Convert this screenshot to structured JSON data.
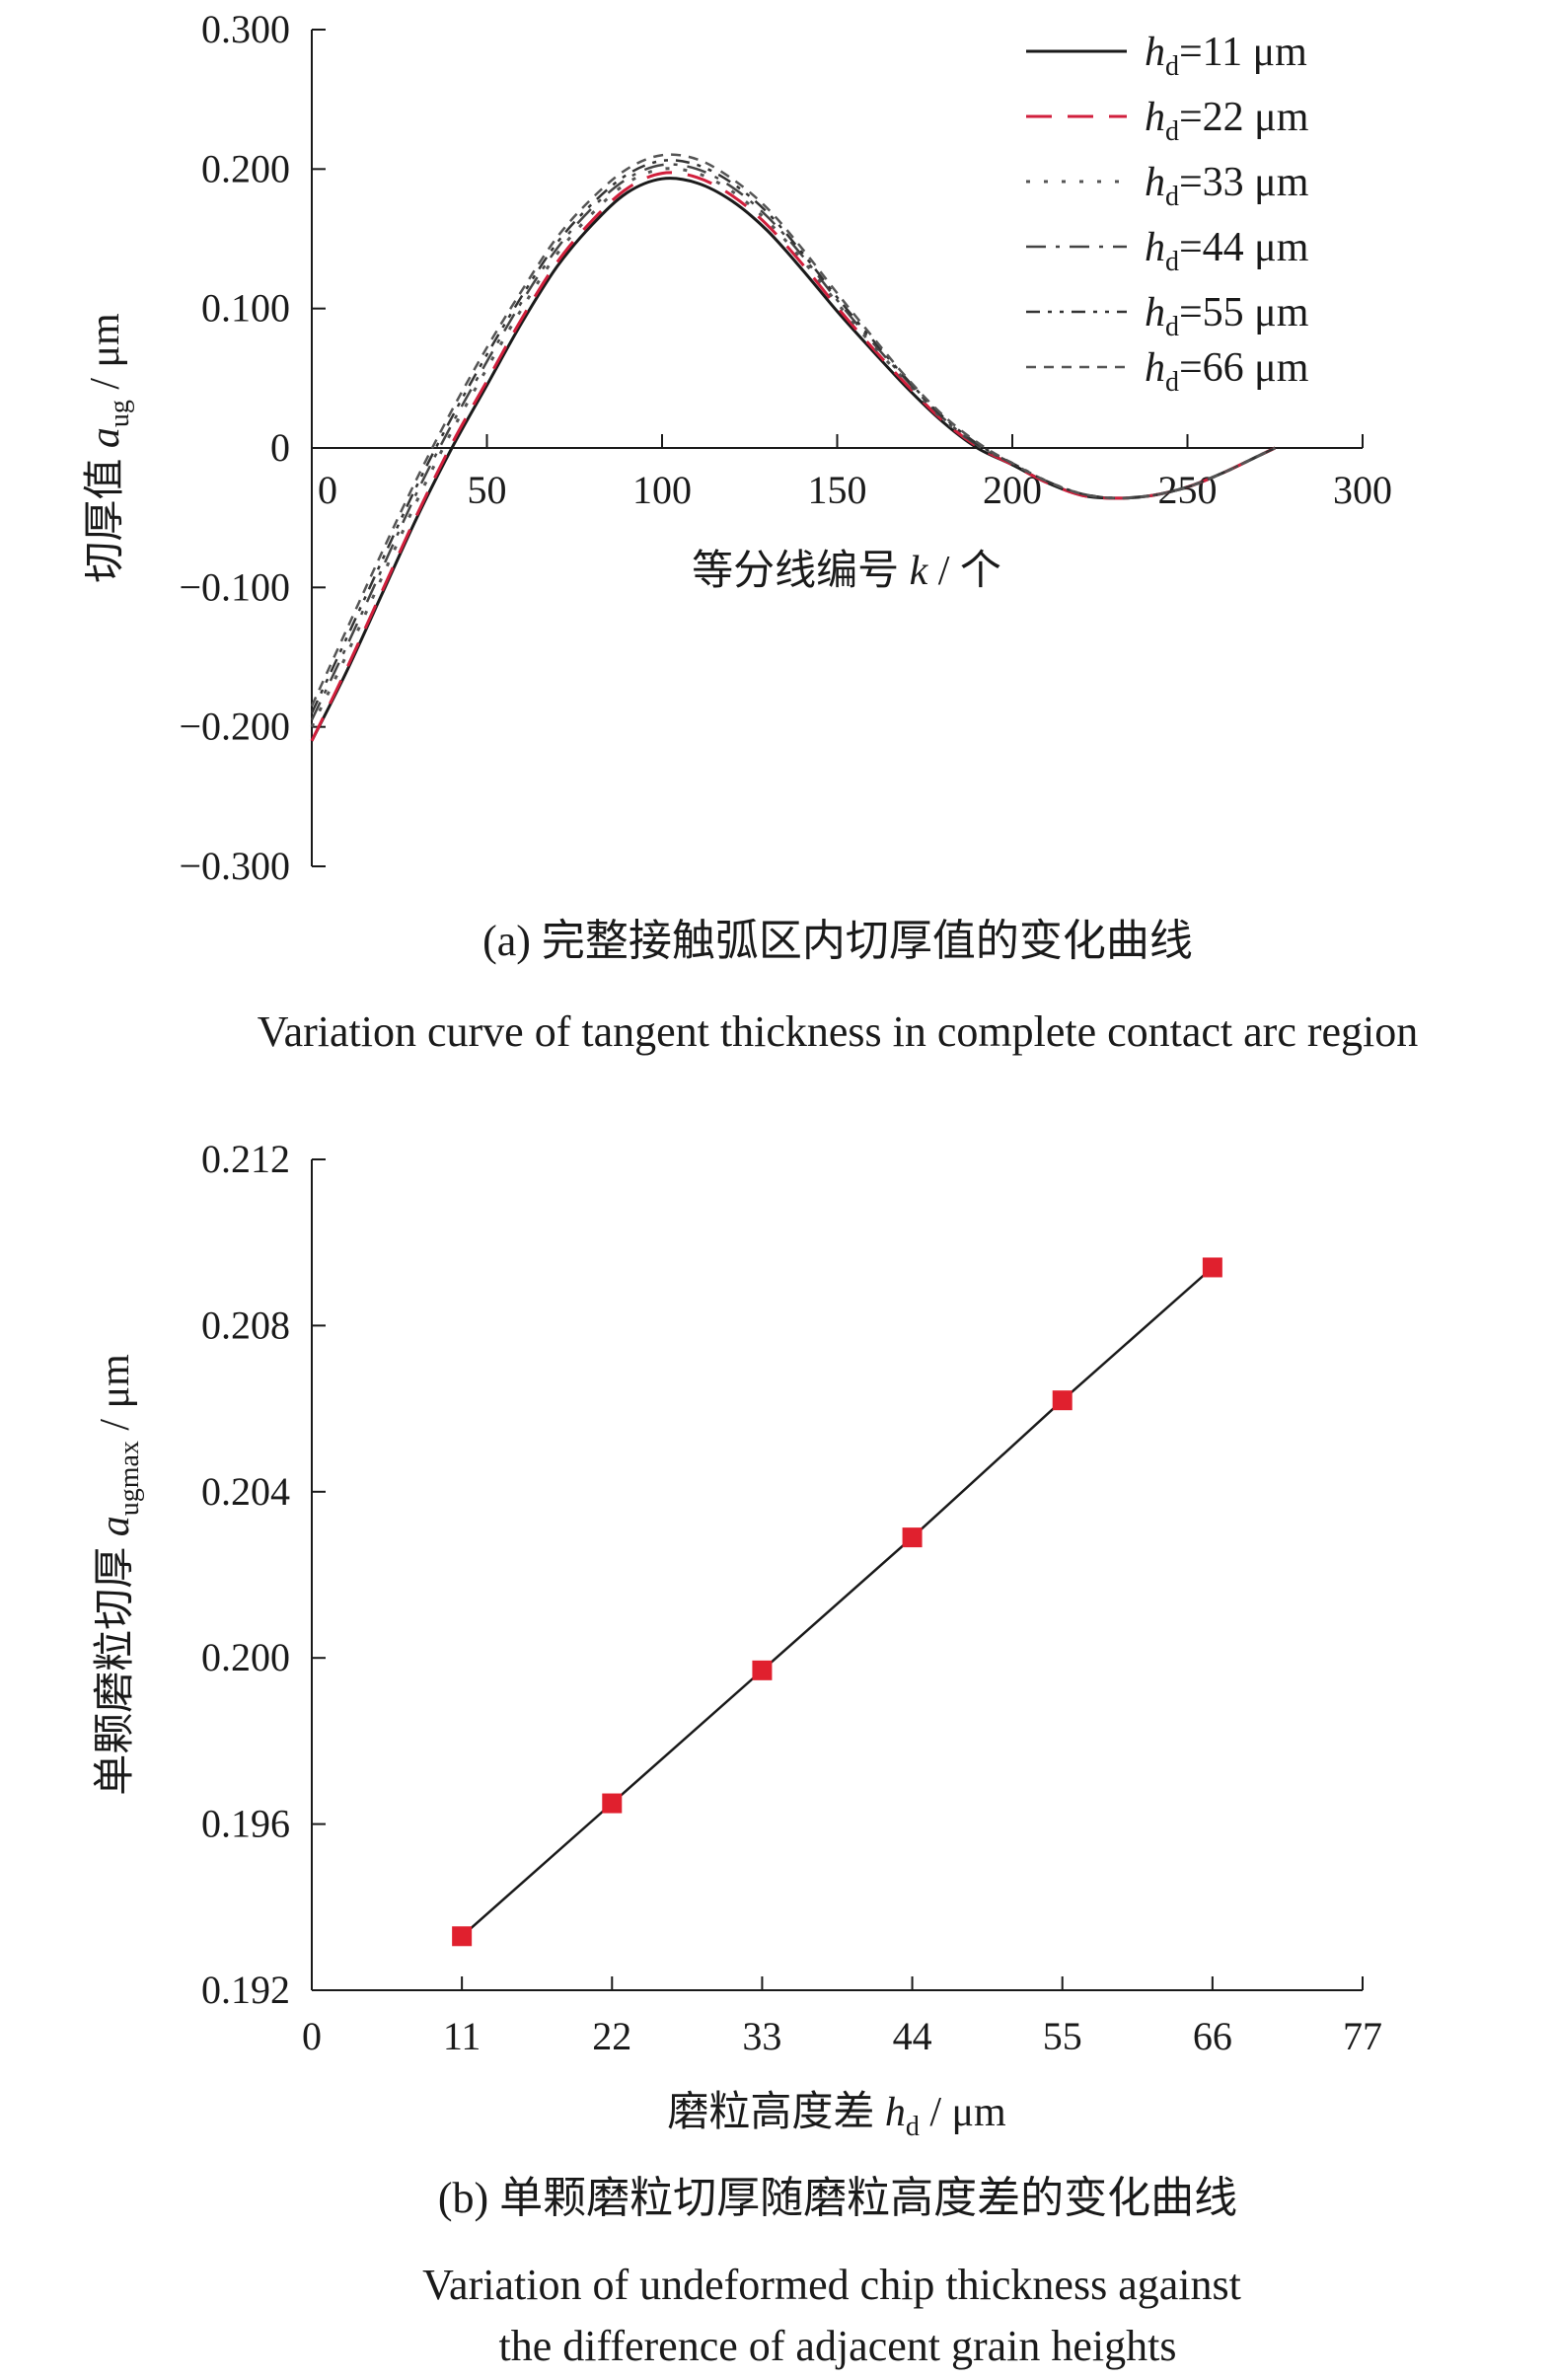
{
  "colors": {
    "axis": "#1a1a1a",
    "text": "#1a1a1a",
    "marker": "#e0202e",
    "series": [
      "#1a1a1a",
      "#d11f3c",
      "#555555",
      "#444444",
      "#333333",
      "#555555"
    ]
  },
  "chart_data": [
    {
      "type": "line",
      "panel": "a",
      "caption_cn": "(a) 完整接触弧区内切厚值的变化曲线",
      "caption_en": "Variation curve of tangent thickness in complete contact arc region",
      "xlabel": {
        "text": "等分线编号",
        "var": "k",
        "unit": "/ 个"
      },
      "ylabel": {
        "prefix": "切厚值",
        "var": "a",
        "sub": "ug",
        "unit": "/ μm"
      },
      "xlim": [
        0,
        300
      ],
      "ylim": [
        -0.3,
        0.3
      ],
      "x_ticks": [
        "0",
        "50",
        "100",
        "150",
        "200",
        "250",
        "300"
      ],
      "y_ticks": [
        "0.300",
        "0.200",
        "0.100",
        "0",
        "−0.100",
        "−0.200",
        "−0.300"
      ],
      "legend": {
        "placement": "top-right"
      },
      "series": [
        {
          "label_var": "h",
          "label_sub": "d",
          "label_rest": "=11 μm",
          "style": "solid",
          "x": [
            0,
            10,
            20,
            30,
            40,
            50,
            60,
            70,
            80,
            90,
            100,
            110,
            120,
            130,
            140,
            150,
            160,
            170,
            180,
            190,
            200,
            210,
            220,
            230,
            240,
            250,
            260,
            270,
            275
          ],
          "y": [
            -0.21,
            -0.16,
            -0.105,
            -0.05,
            0.0,
            0.045,
            0.09,
            0.13,
            0.16,
            0.183,
            0.193,
            0.19,
            0.177,
            0.156,
            0.128,
            0.098,
            0.07,
            0.043,
            0.019,
            0.0,
            -0.012,
            -0.025,
            -0.034,
            -0.036,
            -0.034,
            -0.028,
            -0.018,
            -0.006,
            0.0
          ]
        },
        {
          "label_var": "h",
          "label_sub": "d",
          "label_rest": "=22 μm",
          "style": "long-dash",
          "x": [
            0,
            10,
            20,
            30,
            40,
            50,
            60,
            70,
            80,
            90,
            100,
            110,
            120,
            130,
            140,
            150,
            160,
            170,
            180,
            190,
            200,
            210,
            220,
            230,
            240,
            250,
            260,
            270,
            275
          ],
          "y": [
            -0.21,
            -0.158,
            -0.103,
            -0.048,
            0.003,
            0.048,
            0.093,
            0.133,
            0.163,
            0.186,
            0.197,
            0.194,
            0.181,
            0.16,
            0.132,
            0.101,
            0.072,
            0.045,
            0.02,
            0.001,
            -0.012,
            -0.025,
            -0.034,
            -0.036,
            -0.034,
            -0.028,
            -0.018,
            -0.006,
            0.0
          ]
        },
        {
          "label_var": "h",
          "label_sub": "d",
          "label_rest": "=33 μm",
          "style": "dotted",
          "x": [
            0,
            10,
            20,
            30,
            40,
            50,
            60,
            70,
            80,
            90,
            100,
            110,
            120,
            130,
            140,
            150,
            160,
            170,
            180,
            190,
            200,
            210,
            220,
            230,
            240,
            250,
            260,
            270,
            275
          ],
          "y": [
            -0.2,
            -0.148,
            -0.093,
            -0.038,
            0.012,
            0.057,
            0.1,
            0.139,
            0.168,
            0.19,
            0.2,
            0.197,
            0.184,
            0.163,
            0.135,
            0.104,
            0.074,
            0.047,
            0.021,
            0.002,
            -0.011,
            -0.024,
            -0.033,
            -0.036,
            -0.034,
            -0.028,
            -0.018,
            -0.006,
            0.0
          ]
        },
        {
          "label_var": "h",
          "label_sub": "d",
          "label_rest": "=44 μm",
          "style": "dash-dot",
          "x": [
            0,
            10,
            20,
            30,
            40,
            50,
            60,
            70,
            80,
            90,
            100,
            110,
            120,
            130,
            140,
            150,
            160,
            170,
            180,
            190,
            200,
            210,
            220,
            230,
            240,
            250,
            260,
            270,
            275
          ],
          "y": [
            -0.195,
            -0.142,
            -0.087,
            -0.032,
            0.017,
            0.062,
            0.105,
            0.143,
            0.172,
            0.193,
            0.203,
            0.2,
            0.187,
            0.166,
            0.138,
            0.106,
            0.076,
            0.048,
            0.022,
            0.002,
            -0.011,
            -0.024,
            -0.033,
            -0.036,
            -0.034,
            -0.028,
            -0.018,
            -0.006,
            0.0
          ]
        },
        {
          "label_var": "h",
          "label_sub": "d",
          "label_rest": "=55 μm",
          "style": "dash-dot-dot",
          "x": [
            0,
            10,
            20,
            30,
            40,
            50,
            60,
            70,
            80,
            90,
            100,
            110,
            120,
            130,
            140,
            150,
            160,
            170,
            180,
            190,
            200,
            210,
            220,
            230,
            240,
            250,
            260,
            270,
            275
          ],
          "y": [
            -0.19,
            -0.136,
            -0.081,
            -0.027,
            0.022,
            0.067,
            0.109,
            0.147,
            0.175,
            0.196,
            0.206,
            0.203,
            0.19,
            0.169,
            0.14,
            0.108,
            0.078,
            0.049,
            0.023,
            0.003,
            -0.011,
            -0.024,
            -0.033,
            -0.036,
            -0.034,
            -0.028,
            -0.018,
            -0.006,
            0.0
          ]
        },
        {
          "label_var": "h",
          "label_sub": "d",
          "label_rest": "=66 μm",
          "style": "short-dash",
          "x": [
            0,
            10,
            20,
            30,
            40,
            50,
            60,
            70,
            80,
            90,
            100,
            110,
            120,
            130,
            140,
            150,
            160,
            170,
            180,
            190,
            200,
            210,
            220,
            230,
            240,
            250,
            260,
            270,
            275
          ],
          "y": [
            -0.185,
            -0.13,
            -0.075,
            -0.022,
            0.027,
            0.072,
            0.113,
            0.151,
            0.179,
            0.2,
            0.21,
            0.207,
            0.193,
            0.172,
            0.143,
            0.111,
            0.08,
            0.05,
            0.024,
            0.004,
            -0.011,
            -0.024,
            -0.033,
            -0.036,
            -0.034,
            -0.028,
            -0.018,
            -0.006,
            0.0
          ]
        }
      ]
    },
    {
      "type": "line",
      "panel": "b",
      "caption_cn": "(b) 单颗磨粒切厚随磨粒高度差的变化曲线",
      "caption_en": [
        "Variation of undeformed chip thickness against",
        "the difference of adjacent grain heights"
      ],
      "xlabel": {
        "text": "磨粒高度差",
        "var": "h",
        "sub": "d",
        "unit": "/ μm"
      },
      "ylabel": {
        "prefix": "单颗磨粒切厚",
        "var": "a",
        "sub": "ugmax",
        "unit": "/ μm"
      },
      "xlim": [
        0,
        77
      ],
      "ylim": [
        0.192,
        0.212
      ],
      "x_ticks": [
        "0",
        "11",
        "22",
        "33",
        "44",
        "55",
        "66",
        "77"
      ],
      "y_ticks": [
        "0.212",
        "0.208",
        "0.204",
        "0.200",
        "0.196",
        "0.192"
      ],
      "series": [
        {
          "marker": "square",
          "x": [
            11,
            22,
            33,
            44,
            55,
            66
          ],
          "y": [
            0.1933,
            0.1965,
            0.1997,
            0.2029,
            0.2062,
            0.2094
          ]
        }
      ]
    }
  ]
}
